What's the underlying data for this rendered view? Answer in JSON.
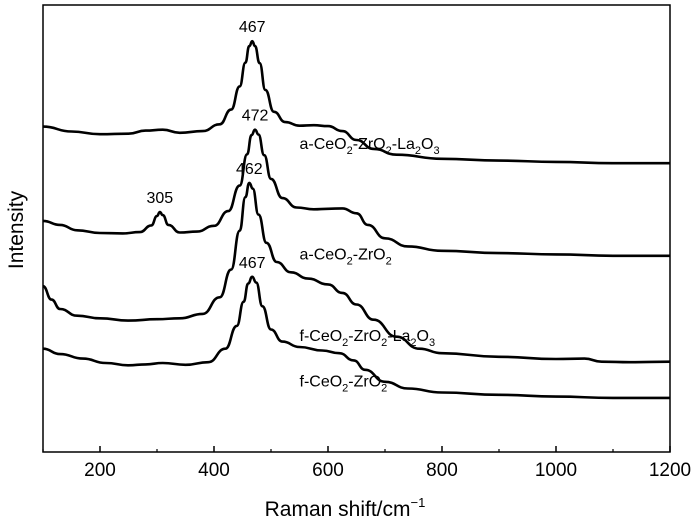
{
  "chart_data": {
    "type": "line",
    "xlabel": "Raman shift/cm",
    "xlabel_sup": "−1",
    "ylabel": "Intensity",
    "xlim": [
      100,
      1200
    ],
    "ylim": [
      0,
      100
    ],
    "xticks": [
      200,
      400,
      600,
      800,
      1000,
      1200
    ],
    "yticks_shown": false,
    "legend": "inline labels at right of each curve",
    "series": [
      {
        "name": "a-CeO2-ZrO2-La2O3",
        "label_parts": [
          [
            "a-CeO",
            ""
          ],
          [
            "2",
            "sub"
          ],
          [
            "-ZrO",
            ""
          ],
          [
            "2",
            "sub"
          ],
          [
            "-La",
            ""
          ],
          [
            "2",
            "sub"
          ],
          [
            "O",
            ""
          ],
          [
            "3",
            "sub"
          ]
        ],
        "label_anchor": [
          550,
          67.8
        ],
        "peak": {
          "x": 467,
          "label": "467"
        },
        "points": [
          [
            100,
            72.8
          ],
          [
            150,
            71.7
          ],
          [
            200,
            71.1
          ],
          [
            250,
            71.2
          ],
          [
            280,
            71.9
          ],
          [
            310,
            72.1
          ],
          [
            340,
            71.4
          ],
          [
            380,
            71.8
          ],
          [
            410,
            73.3
          ],
          [
            430,
            76.6
          ],
          [
            445,
            81.8
          ],
          [
            455,
            87.1
          ],
          [
            462,
            90.8
          ],
          [
            467,
            91.9
          ],
          [
            472,
            90.8
          ],
          [
            480,
            87.0
          ],
          [
            490,
            81.0
          ],
          [
            505,
            76.1
          ],
          [
            525,
            73.8
          ],
          [
            550,
            73.0
          ],
          [
            575,
            73.1
          ],
          [
            600,
            72.9
          ],
          [
            625,
            71.8
          ],
          [
            650,
            69.8
          ],
          [
            680,
            67.8
          ],
          [
            720,
            66.5
          ],
          [
            800,
            65.6
          ],
          [
            900,
            65.2
          ],
          [
            1000,
            64.9
          ],
          [
            1100,
            64.6
          ],
          [
            1200,
            64.6
          ]
        ]
      },
      {
        "name": "a-CeO2-ZrO2",
        "label_parts": [
          [
            "a-CeO",
            ""
          ],
          [
            "2",
            "sub"
          ],
          [
            "-ZrO",
            ""
          ],
          [
            "2",
            "sub"
          ]
        ],
        "label_anchor": [
          550,
          43.1
        ],
        "peaks": [
          {
            "x": 305,
            "label": "305"
          },
          {
            "x": 472,
            "label": "472"
          }
        ],
        "points": [
          [
            100,
            51.7
          ],
          [
            130,
            50.8
          ],
          [
            160,
            49.6
          ],
          [
            200,
            49.0
          ],
          [
            240,
            48.9
          ],
          [
            270,
            49.2
          ],
          [
            290,
            50.7
          ],
          [
            300,
            52.8
          ],
          [
            305,
            53.7
          ],
          [
            310,
            53.0
          ],
          [
            320,
            50.8
          ],
          [
            340,
            49.1
          ],
          [
            370,
            49.3
          ],
          [
            400,
            50.6
          ],
          [
            425,
            53.9
          ],
          [
            445,
            59.6
          ],
          [
            458,
            66.6
          ],
          [
            466,
            70.9
          ],
          [
            472,
            72.1
          ],
          [
            478,
            71.0
          ],
          [
            488,
            66.4
          ],
          [
            500,
            61.1
          ],
          [
            520,
            56.8
          ],
          [
            545,
            54.7
          ],
          [
            575,
            54.3
          ],
          [
            600,
            54.4
          ],
          [
            625,
            54.5
          ],
          [
            650,
            53.4
          ],
          [
            670,
            50.8
          ],
          [
            700,
            47.8
          ],
          [
            740,
            46.0
          ],
          [
            800,
            45.0
          ],
          [
            900,
            44.5
          ],
          [
            1000,
            44.2
          ],
          [
            1100,
            43.9
          ],
          [
            1200,
            43.9
          ]
        ]
      },
      {
        "name": "f-CeO2-ZrO2-La2O3",
        "label_parts": [
          [
            "f-CeO",
            ""
          ],
          [
            "2",
            "sub"
          ],
          [
            "-ZrO",
            ""
          ],
          [
            "2",
            "sub"
          ],
          [
            "-La",
            ""
          ],
          [
            "2",
            "sub"
          ],
          [
            "O",
            ""
          ],
          [
            "3",
            "sub"
          ]
        ],
        "label_anchor": [
          550,
          24.8
        ],
        "peak": {
          "x": 462,
          "label": "462"
        },
        "points": [
          [
            100,
            37.1
          ],
          [
            115,
            34.1
          ],
          [
            130,
            32.0
          ],
          [
            160,
            30.5
          ],
          [
            200,
            29.9
          ],
          [
            250,
            29.4
          ],
          [
            300,
            29.7
          ],
          [
            340,
            29.9
          ],
          [
            380,
            30.9
          ],
          [
            410,
            34.6
          ],
          [
            430,
            40.8
          ],
          [
            445,
            49.5
          ],
          [
            455,
            57.0
          ],
          [
            462,
            60.2
          ],
          [
            468,
            58.9
          ],
          [
            478,
            53.1
          ],
          [
            492,
            46.8
          ],
          [
            510,
            42.5
          ],
          [
            535,
            40.2
          ],
          [
            565,
            38.8
          ],
          [
            600,
            37.5
          ],
          [
            625,
            35.6
          ],
          [
            650,
            33.0
          ],
          [
            680,
            29.6
          ],
          [
            720,
            25.8
          ],
          [
            760,
            23.1
          ],
          [
            800,
            22.1
          ],
          [
            900,
            21.3
          ],
          [
            1000,
            20.8
          ],
          [
            1050,
            20.9
          ],
          [
            1080,
            20.2
          ],
          [
            1130,
            20.1
          ],
          [
            1200,
            20.2
          ]
        ]
      },
      {
        "name": "f-CeO2-ZrO2",
        "label_parts": [
          [
            "f-CeO",
            ""
          ],
          [
            "2",
            "sub"
          ],
          [
            "-ZrO",
            ""
          ],
          [
            "2",
            "sub"
          ]
        ],
        "label_anchor": [
          550,
          14.6
        ],
        "peak": {
          "x": 467,
          "label": "467"
        },
        "points": [
          [
            100,
            23.1
          ],
          [
            130,
            21.9
          ],
          [
            170,
            20.9
          ],
          [
            210,
            19.9
          ],
          [
            250,
            19.4
          ],
          [
            280,
            19.6
          ],
          [
            310,
            19.9
          ],
          [
            350,
            19.5
          ],
          [
            390,
            20.1
          ],
          [
            420,
            23.1
          ],
          [
            440,
            28.2
          ],
          [
            452,
            33.6
          ],
          [
            460,
            37.7
          ],
          [
            467,
            39.2
          ],
          [
            474,
            37.9
          ],
          [
            485,
            32.6
          ],
          [
            500,
            27.4
          ],
          [
            520,
            24.7
          ],
          [
            550,
            23.5
          ],
          [
            590,
            22.7
          ],
          [
            620,
            22.1
          ],
          [
            645,
            20.5
          ],
          [
            665,
            18.4
          ],
          [
            700,
            15.7
          ],
          [
            740,
            14.2
          ],
          [
            800,
            13.3
          ],
          [
            900,
            12.8
          ],
          [
            1000,
            12.4
          ],
          [
            1100,
            12.1
          ],
          [
            1200,
            12.1
          ]
        ]
      }
    ]
  }
}
